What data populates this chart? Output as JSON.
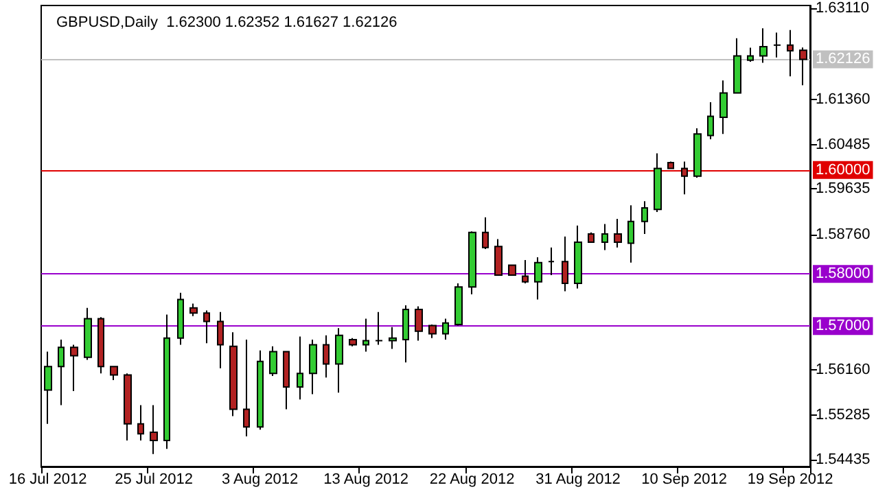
{
  "chart_data": {
    "type": "candlestick",
    "title": "GBPUSD,Daily  1.62300 1.62352 1.61627 1.62126",
    "categories": [
      "16 Jul 2012",
      null,
      null,
      null,
      null,
      null,
      null,
      null,
      "25 Jul 2012",
      null,
      null,
      null,
      null,
      null,
      null,
      null,
      "3 Aug 2012",
      null,
      null,
      null,
      null,
      null,
      null,
      null,
      "13 Aug 2012",
      null,
      null,
      null,
      null,
      null,
      null,
      null,
      "22 Aug 2012",
      null,
      null,
      null,
      null,
      null,
      null,
      null,
      "31 Aug 2012",
      null,
      null,
      null,
      null,
      null,
      null,
      null,
      "10 Sep 2012",
      null,
      null,
      null,
      null,
      null,
      null,
      null,
      "19 Sep 2012",
      null
    ],
    "ohlc": [
      [
        1.5577,
        1.5651,
        1.5512,
        1.5622
      ],
      [
        1.5622,
        1.5674,
        1.5548,
        1.5659
      ],
      [
        1.5659,
        1.5664,
        1.5575,
        1.5643
      ],
      [
        1.564,
        1.5735,
        1.5635,
        1.5714
      ],
      [
        1.5714,
        1.5717,
        1.5609,
        1.5622
      ],
      [
        1.5622,
        1.5622,
        1.5596,
        1.5606
      ],
      [
        1.5606,
        1.5609,
        1.548,
        1.5512
      ],
      [
        1.5512,
        1.5548,
        1.548,
        1.5493
      ],
      [
        1.5496,
        1.5548,
        1.5454,
        1.548
      ],
      [
        1.548,
        1.5722,
        1.5464,
        1.5677
      ],
      [
        1.5677,
        1.5764,
        1.5664,
        1.5751
      ],
      [
        1.5735,
        1.5743,
        1.5719,
        1.5725
      ],
      [
        1.5725,
        1.573,
        1.5667,
        1.5709
      ],
      [
        1.5709,
        1.5727,
        1.5619,
        1.5664
      ],
      [
        1.5661,
        1.5688,
        1.5527,
        1.554
      ],
      [
        1.554,
        1.5674,
        1.5488,
        1.5506
      ],
      [
        1.5506,
        1.5653,
        1.5501,
        1.5632
      ],
      [
        1.5609,
        1.5661,
        1.5604,
        1.5651
      ],
      [
        1.5651,
        1.5651,
        1.554,
        1.5583
      ],
      [
        1.5583,
        1.568,
        1.5559,
        1.5609
      ],
      [
        1.5609,
        1.5674,
        1.5569,
        1.5664
      ],
      [
        1.5664,
        1.5682,
        1.5601,
        1.5627
      ],
      [
        1.5627,
        1.5696,
        1.5572,
        1.5682
      ],
      [
        1.5674,
        1.5677,
        1.5661,
        1.5664
      ],
      [
        1.5664,
        1.5714,
        1.5651,
        1.5672
      ],
      [
        1.5672,
        1.5727,
        1.5664,
        1.5672
      ],
      [
        1.5672,
        1.5698,
        1.5656,
        1.5677
      ],
      [
        1.5674,
        1.574,
        1.563,
        1.5732
      ],
      [
        1.5732,
        1.5738,
        1.5672,
        1.569
      ],
      [
        1.5701,
        1.5703,
        1.5677,
        1.5685
      ],
      [
        1.5685,
        1.5714,
        1.5674,
        1.5706
      ],
      [
        1.5703,
        1.5782,
        1.5701,
        1.5775
      ],
      [
        1.5775,
        1.5882,
        1.5761,
        1.588
      ],
      [
        1.588,
        1.5909,
        1.5848,
        1.5851
      ],
      [
        1.5853,
        1.5867,
        1.5798,
        1.5798
      ],
      [
        1.5817,
        1.5817,
        1.5798,
        1.5798
      ],
      [
        1.5796,
        1.5827,
        1.5782,
        1.5785
      ],
      [
        1.5785,
        1.5832,
        1.5751,
        1.5822
      ],
      [
        1.5824,
        1.5851,
        1.5798,
        1.5824
      ],
      [
        1.5824,
        1.5872,
        1.5767,
        1.5782
      ],
      [
        1.5782,
        1.5893,
        1.5772,
        1.5861
      ],
      [
        1.5877,
        1.588,
        1.5861,
        1.5861
      ],
      [
        1.5861,
        1.5896,
        1.5846,
        1.5877
      ],
      [
        1.5877,
        1.5906,
        1.5851,
        1.5861
      ],
      [
        1.5859,
        1.5932,
        1.5822,
        1.5901
      ],
      [
        1.5901,
        1.594,
        1.5877,
        1.5927
      ],
      [
        1.5924,
        1.6032,
        1.5919,
        1.6003
      ],
      [
        1.6014,
        1.6016,
        1.6003,
        1.6003
      ],
      [
        1.6003,
        1.6016,
        1.5953,
        1.5988
      ],
      [
        1.5988,
        1.608,
        1.5985,
        1.6069
      ],
      [
        1.6066,
        1.613,
        1.6059,
        1.6103
      ],
      [
        1.6101,
        1.6172,
        1.6069,
        1.6148
      ],
      [
        1.6148,
        1.6253,
        1.6148,
        1.6219
      ],
      [
        1.6211,
        1.6235,
        1.6208,
        1.6219
      ],
      [
        1.6219,
        1.6272,
        1.6206,
        1.6237
      ],
      [
        1.624,
        1.6264,
        1.6216,
        1.624
      ],
      [
        1.624,
        1.6269,
        1.618,
        1.6229
      ],
      [
        1.623,
        1.62352,
        1.61627,
        1.62126
      ]
    ],
    "colors": [
      "#33cc33",
      "#33cc33",
      "#b22222",
      "#33cc33",
      "#b22222",
      "#b22222",
      "#b22222",
      "#b22222",
      "#b22222",
      "#33cc33",
      "#33cc33",
      "#b22222",
      "#b22222",
      "#b22222",
      "#b22222",
      "#b22222",
      "#33cc33",
      "#33cc33",
      "#b22222",
      "#33cc33",
      "#33cc33",
      "#b22222",
      "#33cc33",
      "#b22222",
      "#33cc33",
      "#000000",
      "#33cc33",
      "#33cc33",
      "#b22222",
      "#b22222",
      "#33cc33",
      "#33cc33",
      "#33cc33",
      "#b22222",
      "#b22222",
      "#b22222",
      "#b22222",
      "#33cc33",
      "#000000",
      "#b22222",
      "#33cc33",
      "#b22222",
      "#33cc33",
      "#b22222",
      "#33cc33",
      "#33cc33",
      "#33cc33",
      "#b22222",
      "#b22222",
      "#33cc33",
      "#33cc33",
      "#33cc33",
      "#33cc33",
      "#33cc33",
      "#33cc33",
      "#000000",
      "#b22222",
      "#b22222"
    ],
    "ylim": [
      1.543,
      1.6316
    ],
    "yticks": [
      {
        "value": 1.6311,
        "label": "1.63110"
      },
      {
        "value": 1.6136,
        "label": "1.61360"
      },
      {
        "value": 1.60485,
        "label": "1.60485"
      },
      {
        "value": 1.59635,
        "label": "1.59635"
      },
      {
        "value": 1.5876,
        "label": "1.58760"
      },
      {
        "value": 1.5616,
        "label": "1.56160"
      },
      {
        "value": 1.55285,
        "label": "1.55285"
      },
      {
        "value": 1.54435,
        "label": "1.54435"
      }
    ],
    "ref_lines": [
      {
        "axis": "y",
        "value": 1.62126,
        "label": "1.62126",
        "color": "#c0c0c0"
      },
      {
        "axis": "y",
        "value": 1.6,
        "label": "1.60000",
        "color": "#e00000"
      },
      {
        "axis": "y",
        "value": 1.58,
        "label": "1.58000",
        "color": "#9900cc"
      },
      {
        "axis": "y",
        "value": 1.57,
        "label": "1.57000",
        "color": "#9900cc"
      }
    ],
    "grid": false
  }
}
